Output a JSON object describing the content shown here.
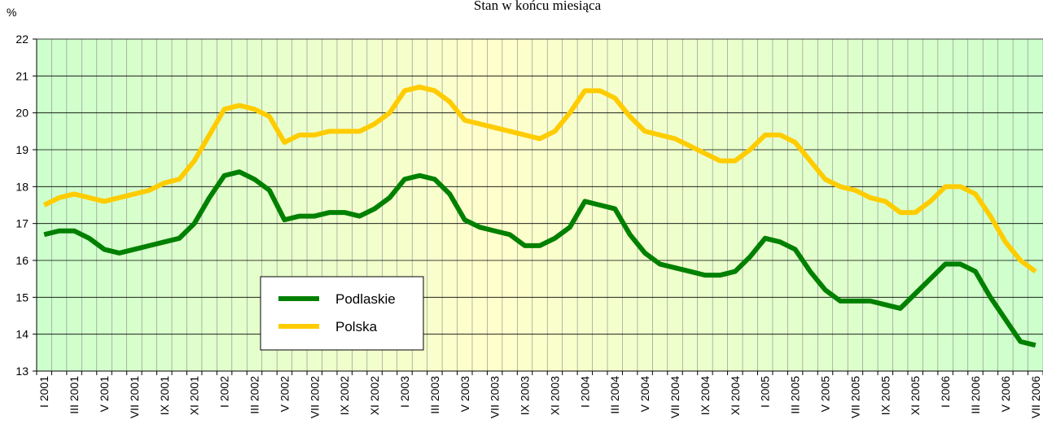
{
  "chart_data": {
    "type": "line",
    "title": "Stan w końcu miesiąca",
    "y_label": "%",
    "categories": [
      "I 2001",
      null,
      "III 2001",
      null,
      "V 2001",
      null,
      "VII 2001",
      null,
      "IX 2001",
      null,
      "XI 2001",
      null,
      "I 2002",
      null,
      "III 2002",
      null,
      "V 2002",
      null,
      "VII 2002",
      null,
      "IX 2002",
      null,
      "XI 2002",
      null,
      "I 2003",
      null,
      "III 2003",
      null,
      "V 2003",
      null,
      "VII 2003",
      null,
      "IX 2003",
      null,
      "XI 2003",
      null,
      "I 2004",
      null,
      "III 2004",
      null,
      "V 2004",
      null,
      "VII 2004",
      null,
      "IX 2004",
      null,
      "XI 2004",
      null,
      "I 2005",
      null,
      "III 2005",
      null,
      "V 2005",
      null,
      "VII 2005",
      null,
      "IX 2005",
      null,
      "XI 2005",
      null,
      "I 2006",
      null,
      "III 2006",
      null,
      "V 2006",
      null,
      "VII 2006"
    ],
    "series": [
      {
        "name": "Podlaskie",
        "color": "#008000",
        "values": [
          16.7,
          16.8,
          16.8,
          16.6,
          16.3,
          16.2,
          16.3,
          16.4,
          16.5,
          16.6,
          17.0,
          17.7,
          18.3,
          18.4,
          18.2,
          17.9,
          17.1,
          17.2,
          17.2,
          17.3,
          17.3,
          17.2,
          17.4,
          17.7,
          18.2,
          18.3,
          18.2,
          17.8,
          17.1,
          16.9,
          16.8,
          16.7,
          16.4,
          16.4,
          16.6,
          16.9,
          17.6,
          17.5,
          17.4,
          16.7,
          16.2,
          15.9,
          15.8,
          15.7,
          15.6,
          15.6,
          15.7,
          16.1,
          16.6,
          16.5,
          16.3,
          15.7,
          15.2,
          14.9,
          14.9,
          14.9,
          14.8,
          14.7,
          15.1,
          15.5,
          15.9,
          15.9,
          15.7,
          15.0,
          14.4,
          13.8,
          13.7
        ]
      },
      {
        "name": "Polska",
        "color": "#ffcc00",
        "values": [
          17.5,
          17.7,
          17.8,
          17.7,
          17.6,
          17.7,
          17.8,
          17.9,
          18.1,
          18.2,
          18.7,
          19.4,
          20.1,
          20.2,
          20.1,
          19.9,
          19.2,
          19.4,
          19.4,
          19.5,
          19.5,
          19.5,
          19.7,
          20.0,
          20.6,
          20.7,
          20.6,
          20.3,
          19.8,
          19.7,
          19.6,
          19.5,
          19.4,
          19.3,
          19.5,
          20.0,
          20.6,
          20.6,
          20.4,
          19.9,
          19.5,
          19.4,
          19.3,
          19.1,
          18.9,
          18.7,
          18.7,
          19.0,
          19.4,
          19.4,
          19.2,
          18.7,
          18.2,
          18.0,
          17.9,
          17.7,
          17.6,
          17.3,
          17.3,
          17.6,
          18.0,
          18.0,
          17.8,
          17.2,
          16.5,
          16.0,
          15.7
        ]
      }
    ],
    "ylim": [
      13,
      22
    ],
    "yticks": [
      13,
      14,
      15,
      16,
      17,
      18,
      19,
      20,
      21,
      22
    ],
    "grid": true
  }
}
